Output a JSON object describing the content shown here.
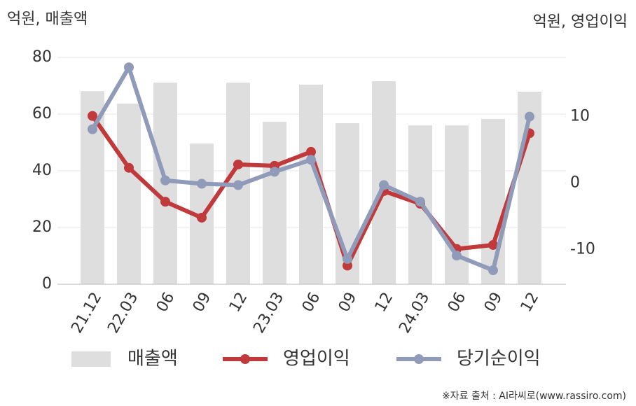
{
  "chart_data": {
    "type": "bar-line",
    "y_label": "억원, 매출액",
    "y2_label": "억원, 영업이익",
    "categories": [
      "21.12",
      "22.03",
      "06",
      "09",
      "12",
      "23.03",
      "06",
      "09",
      "12",
      "24.03",
      "06",
      "09",
      "12"
    ],
    "series": [
      {
        "name": "매출액",
        "type": "bar",
        "color": "#dedede",
        "values": [
          68.1,
          63.7,
          71.1,
          49.6,
          71.1,
          57.3,
          70.4,
          56.8,
          71.6,
          56.0,
          56.0,
          58.3,
          67.9
        ]
      },
      {
        "name": "영업이익",
        "type": "line",
        "axis": "y2",
        "color": "#c0393b",
        "values": [
          10.1,
          2.3,
          -2.8,
          -5.2,
          2.8,
          2.6,
          4.7,
          -12.4,
          -1.2,
          -3.1,
          -9.9,
          -9.3,
          7.5
        ]
      },
      {
        "name": "당기순이익",
        "type": "line",
        "axis": "y2",
        "color": "#8f9bb8",
        "values": [
          8.1,
          17.4,
          0.4,
          -0.1,
          -0.3,
          1.7,
          3.5,
          -11.4,
          -0.3,
          -2.8,
          -10.9,
          -13.1,
          10.0
        ]
      }
    ],
    "ylim": [
      0,
      80
    ],
    "yticks": [
      0,
      20,
      40,
      60,
      80
    ],
    "y2lim": [
      -15.2,
      18.9
    ],
    "y2ticks": [
      -10,
      0,
      10
    ],
    "grid": true,
    "legend": "bottom",
    "source": "※자료 출처 : AI라씨로(www.rassiro.com)"
  }
}
